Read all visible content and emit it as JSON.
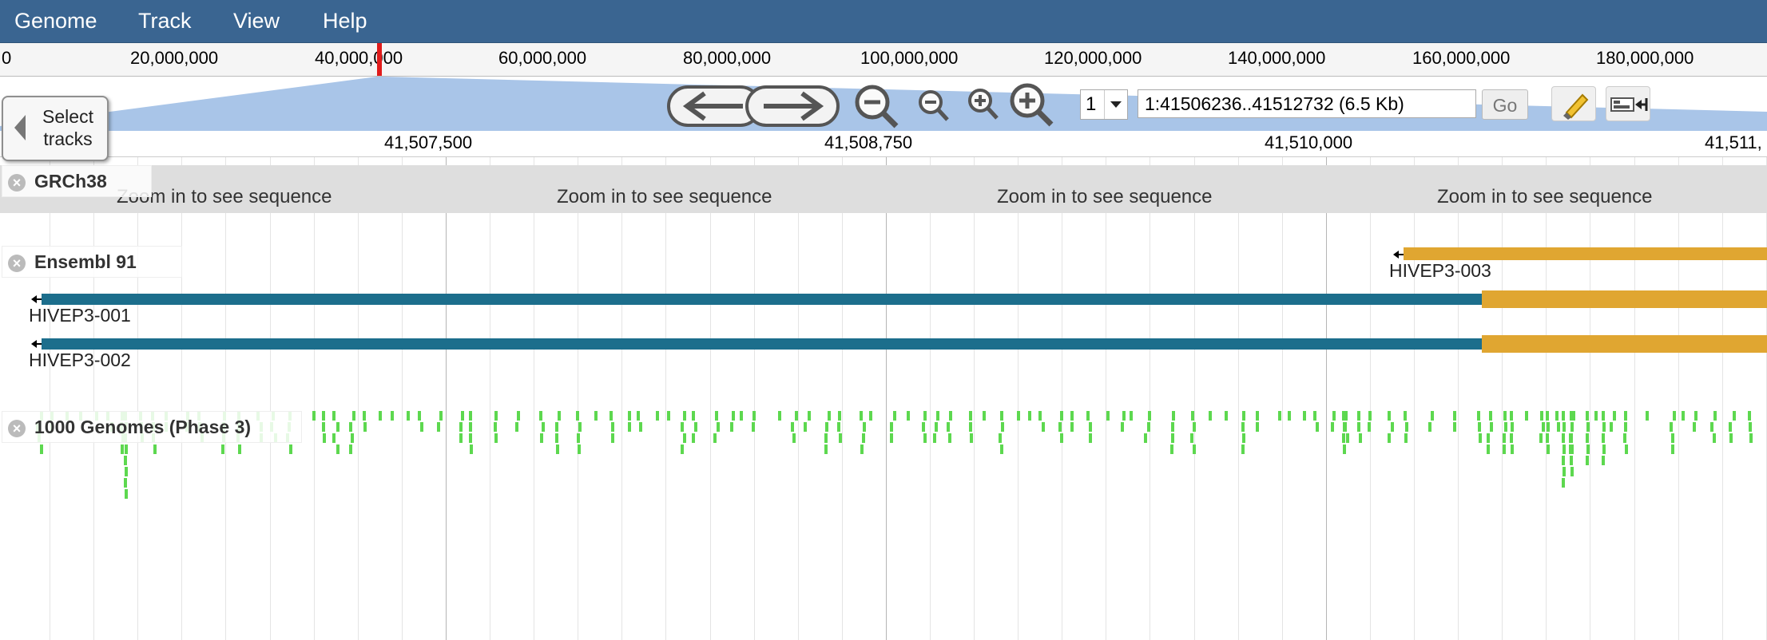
{
  "menu": [
    "Genome",
    "Track",
    "View",
    "Help"
  ],
  "overview": {
    "labels": [
      "0",
      "20,000,000",
      "40,000,000",
      "60,000,000",
      "80,000,000",
      "100,000,000",
      "120,000,000",
      "140,000,000",
      "160,000,000",
      "180,000,000"
    ]
  },
  "nav": {
    "select_tracks": [
      "Select",
      "tracks"
    ],
    "chromosome": "1",
    "location": "1:41506236..41512732 (6.5 Kb)",
    "go_label": "Go"
  },
  "main_ruler": {
    "labels": [
      "41,507,500",
      "41,508,750",
      "41,510,000",
      "41,511,"
    ]
  },
  "tracks": {
    "reference": {
      "name": "GRCh38",
      "sequence_message": "Zoom in to see sequence"
    },
    "genes": {
      "name": "Ensembl 91",
      "transcripts": [
        {
          "label": "HIVEP3-003"
        },
        {
          "label": "HIVEP3-001"
        },
        {
          "label": "HIVEP3-002"
        }
      ]
    },
    "variants": {
      "name": "1000 Genomes (Phase 3)"
    }
  },
  "colors": {
    "menubar": "#3a6591",
    "transcript_cds": "#1c6e8c",
    "transcript_utr": "#e0a631",
    "variant": "#5dd84f",
    "zoom_highlight": "#a9c5e8"
  }
}
